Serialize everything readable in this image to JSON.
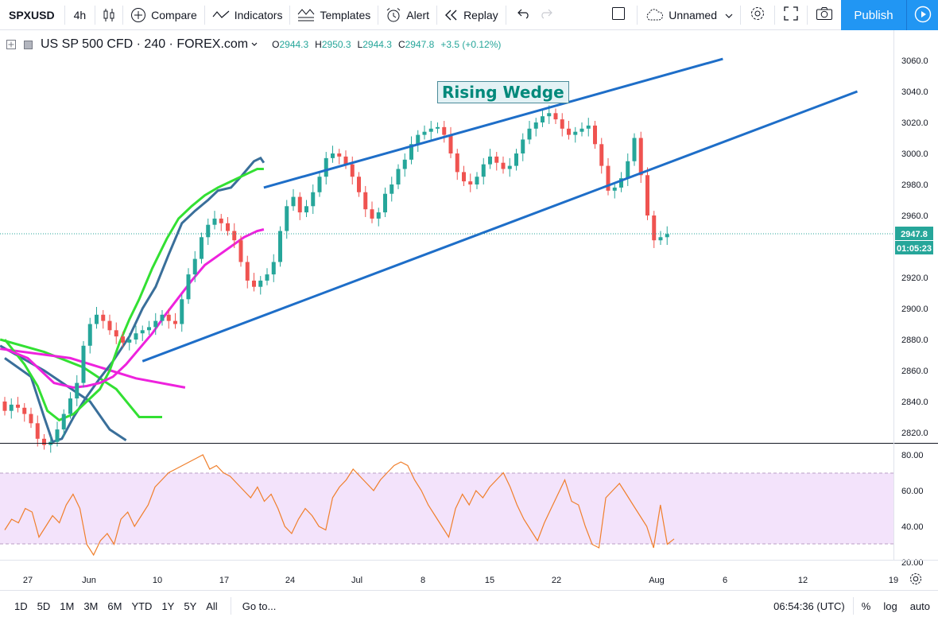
{
  "toolbar": {
    "symbol": "SPXUSD",
    "interval": "4h",
    "compare": "Compare",
    "indicators": "Indicators",
    "templates": "Templates",
    "alert": "Alert",
    "replay": "Replay",
    "layout_name": "Unnamed",
    "publish": "Publish"
  },
  "legend": {
    "title": "US SP 500 CFD · 240 · FOREX.com",
    "o_key": "O",
    "o_val": "2944.3",
    "h_key": "H",
    "h_val": "2950.3",
    "l_key": "L",
    "l_val": "2944.3",
    "c_key": "C",
    "c_val": "2947.8",
    "change": "+3.5 (+0.12%)"
  },
  "annotation": {
    "rising_wedge": "Rising Wedge"
  },
  "price_axis": {
    "ticks": [
      "3060.0",
      "3040.0",
      "3020.0",
      "3000.0",
      "2980.0",
      "2960.0",
      "2940.0",
      "2920.0",
      "2900.0",
      "2880.0",
      "2860.0",
      "2840.0",
      "2820.0"
    ],
    "last_price": "2947.8",
    "countdown": "01:05:23"
  },
  "rsi_axis": {
    "ticks": [
      "80.00",
      "60.00",
      "40.00",
      "20.00"
    ]
  },
  "time_axis": {
    "labels": [
      "27",
      "Jun",
      "10",
      "17",
      "24",
      "Jul",
      "8",
      "15",
      "22",
      "Aug",
      "6",
      "12",
      "19"
    ]
  },
  "bottombar": {
    "ranges": [
      "1D",
      "5D",
      "1M",
      "3M",
      "6M",
      "YTD",
      "1Y",
      "5Y",
      "All"
    ],
    "goto": "Go to...",
    "clock": "06:54:36 (UTC)",
    "percent": "%",
    "log": "log",
    "auto": "auto"
  },
  "colors": {
    "up": "#26a69a",
    "down": "#ef5350",
    "wedge": "#1e6ec8",
    "ma_blue": "#3a6f9a",
    "ma_green": "#33e033",
    "ma_magenta": "#ee22dd",
    "rsi_line": "#f07f2c",
    "rsi_band": "#f3e3fb",
    "accent": "#2196f3"
  },
  "chart_data": {
    "type": "candlestick",
    "symbol": "US SP 500 CFD",
    "interval": "240",
    "ylim": [
      2810,
      3070
    ],
    "last": 2947.8,
    "closes": [
      2834,
      2838,
      2836,
      2832,
      2826,
      2816,
      2812,
      2814,
      2822,
      2832,
      2842,
      2852,
      2876,
      2890,
      2896,
      2892,
      2886,
      2882,
      2878,
      2880,
      2884,
      2886,
      2888,
      2892,
      2896,
      2892,
      2890,
      2906,
      2922,
      2932,
      2946,
      2954,
      2958,
      2955,
      2950,
      2944,
      2930,
      2918,
      2914,
      2918,
      2922,
      2930,
      2950,
      2966,
      2972,
      2962,
      2966,
      2975,
      2985,
      2997,
      3000,
      2998,
      2993,
      2985,
      2975,
      2964,
      2958,
      2962,
      2974,
      2980,
      2990,
      2996,
      3006,
      3012,
      3014,
      3016,
      3017,
      3012,
      3000,
      2988,
      2982,
      2980,
      2985,
      2993,
      2998,
      2994,
      2990,
      2992,
      3000,
      3009,
      3016,
      3020,
      3024,
      3026,
      3022,
      3016,
      3012,
      3014,
      3016,
      3018,
      3006,
      2992,
      2976,
      2978,
      2984,
      2995,
      3010,
      2986,
      2960,
      2944,
      2946,
      2948
    ],
    "ma_blue": [
      [
        27.5,
        2868
      ],
      [
        31.5,
        2856
      ],
      [
        33.5,
        2830
      ],
      [
        34.8,
        2814
      ],
      [
        36.2,
        2816
      ],
      [
        38,
        2830
      ],
      [
        39.8,
        2842
      ],
      [
        42,
        2855
      ],
      [
        44,
        2866
      ],
      [
        46.5,
        2882
      ],
      [
        48.5,
        2900
      ],
      [
        50.5,
        2914
      ],
      [
        52.5,
        2935
      ],
      [
        54.5,
        2955
      ],
      [
        56.5,
        2963
      ],
      [
        58.5,
        2970
      ],
      [
        60,
        2976
      ],
      [
        62,
        2978
      ],
      [
        63.5,
        2985
      ],
      [
        64.5,
        2990
      ],
      [
        65.5,
        2995
      ],
      [
        66.5,
        2997
      ],
      [
        67,
        2994
      ]
    ],
    "ma_green": [
      [
        27.5,
        2880
      ],
      [
        30.5,
        2864
      ],
      [
        32.5,
        2850
      ],
      [
        34,
        2834
      ],
      [
        35.8,
        2828
      ],
      [
        38,
        2832
      ],
      [
        40,
        2840
      ],
      [
        42,
        2848
      ],
      [
        43.5,
        2860
      ],
      [
        45,
        2878
      ],
      [
        46.5,
        2893
      ],
      [
        48,
        2906
      ],
      [
        50,
        2926
      ],
      [
        52.2,
        2945
      ],
      [
        54,
        2958
      ],
      [
        56,
        2966
      ],
      [
        58,
        2973
      ],
      [
        60,
        2978
      ],
      [
        62,
        2982
      ],
      [
        64.5,
        2987
      ],
      [
        66,
        2990
      ],
      [
        67,
        2990
      ]
    ],
    "ma_magenta": [
      [
        27.5,
        2874
      ],
      [
        31,
        2868
      ],
      [
        33,
        2860
      ],
      [
        35,
        2852
      ],
      [
        38,
        2849
      ],
      [
        40,
        2850
      ],
      [
        42,
        2852
      ],
      [
        44,
        2856
      ],
      [
        46,
        2864
      ],
      [
        48,
        2874
      ],
      [
        50,
        2884
      ],
      [
        52,
        2896
      ],
      [
        54,
        2907
      ],
      [
        56,
        2918
      ],
      [
        58,
        2928
      ],
      [
        60,
        2934
      ],
      [
        62,
        2940
      ],
      [
        64,
        2946
      ],
      [
        66,
        2950
      ],
      [
        67,
        2951
      ]
    ],
    "wedge_upper": [
      [
        44.3,
        2978
      ],
      [
        69.5,
        3061
      ]
    ],
    "wedge_lower": [
      [
        36.8,
        2866
      ],
      [
        74.5,
        3040
      ]
    ],
    "rsi": [
      38,
      44,
      42,
      50,
      48,
      34,
      40,
      46,
      42,
      52,
      58,
      50,
      30,
      24,
      32,
      36,
      30,
      44,
      48,
      40,
      46,
      52,
      62,
      66,
      70,
      72,
      74,
      76,
      78,
      80,
      72,
      74,
      70,
      68,
      64,
      60,
      56,
      62,
      54,
      58,
      50,
      40,
      36,
      44,
      50,
      46,
      40,
      38,
      56,
      62,
      66,
      72,
      68,
      64,
      60,
      66,
      70,
      74,
      76,
      74,
      66,
      60,
      52,
      46,
      40,
      34,
      50,
      58,
      52,
      60,
      56,
      62,
      66,
      70,
      62,
      52,
      44,
      38,
      32,
      42,
      50,
      58,
      66,
      54,
      52,
      40,
      30,
      28,
      56,
      60,
      64,
      58,
      52,
      46,
      40,
      28,
      52,
      30,
      33
    ],
    "rsi_band": [
      30,
      70
    ],
    "rsi_ylim": [
      18,
      82
    ],
    "time_labels": [
      "27",
      "Jun",
      "10",
      "17",
      "24",
      "Jul",
      "8",
      "15",
      "22",
      "Aug",
      "6",
      "12",
      "19"
    ]
  }
}
